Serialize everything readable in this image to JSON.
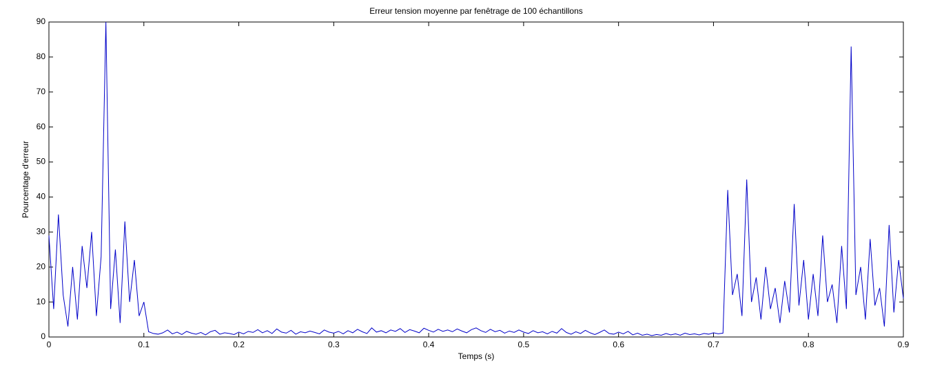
{
  "chart_data": {
    "type": "line",
    "title": "Erreur tension moyenne par fenêtrage de 100 échantillons",
    "x_label": "Temps (s)",
    "y_label": "Pourcentage d'erreur",
    "xlim": [
      0,
      0.9
    ],
    "ylim": [
      0,
      90
    ],
    "xticks": [
      0,
      0.1,
      0.2,
      0.3,
      0.4,
      0.5,
      0.6,
      0.7,
      0.8,
      0.9
    ],
    "yticks": [
      0,
      10,
      20,
      30,
      40,
      50,
      60,
      70,
      80,
      90
    ],
    "grid": false,
    "x": [
      0,
      0.005,
      0.01,
      0.015,
      0.02,
      0.025,
      0.03,
      0.035,
      0.04,
      0.045,
      0.05,
      0.055,
      0.06,
      0.065,
      0.07,
      0.075,
      0.08,
      0.085,
      0.09,
      0.095,
      0.1,
      0.105,
      0.11,
      0.115,
      0.12,
      0.125,
      0.13,
      0.135,
      0.14,
      0.145,
      0.15,
      0.155,
      0.16,
      0.165,
      0.17,
      0.175,
      0.18,
      0.185,
      0.19,
      0.195,
      0.2,
      0.205,
      0.21,
      0.215,
      0.22,
      0.225,
      0.23,
      0.235,
      0.24,
      0.245,
      0.25,
      0.255,
      0.26,
      0.265,
      0.27,
      0.275,
      0.28,
      0.285,
      0.29,
      0.295,
      0.3,
      0.305,
      0.31,
      0.315,
      0.32,
      0.325,
      0.33,
      0.335,
      0.34,
      0.345,
      0.35,
      0.355,
      0.36,
      0.365,
      0.37,
      0.375,
      0.38,
      0.385,
      0.39,
      0.395,
      0.4,
      0.405,
      0.41,
      0.415,
      0.42,
      0.425,
      0.43,
      0.435,
      0.44,
      0.445,
      0.45,
      0.455,
      0.46,
      0.465,
      0.47,
      0.475,
      0.48,
      0.485,
      0.49,
      0.495,
      0.5,
      0.505,
      0.51,
      0.515,
      0.52,
      0.525,
      0.53,
      0.535,
      0.54,
      0.545,
      0.55,
      0.555,
      0.56,
      0.565,
      0.57,
      0.575,
      0.58,
      0.585,
      0.59,
      0.595,
      0.6,
      0.605,
      0.61,
      0.615,
      0.62,
      0.625,
      0.63,
      0.635,
      0.64,
      0.645,
      0.65,
      0.655,
      0.66,
      0.665,
      0.67,
      0.675,
      0.68,
      0.685,
      0.69,
      0.695,
      0.7,
      0.705,
      0.71,
      0.715,
      0.72,
      0.725,
      0.73,
      0.735,
      0.74,
      0.745,
      0.75,
      0.755,
      0.76,
      0.765,
      0.77,
      0.775,
      0.78,
      0.785,
      0.79,
      0.795,
      0.8,
      0.805,
      0.81,
      0.815,
      0.82,
      0.825,
      0.83,
      0.835,
      0.84,
      0.845,
      0.85,
      0.855,
      0.86,
      0.865,
      0.87,
      0.875,
      0.88,
      0.885,
      0.89,
      0.895,
      0.9
    ],
    "series": [
      {
        "color": "#0000c8",
        "values": [
          29,
          8,
          35,
          12,
          3,
          20,
          5,
          26,
          14,
          30,
          6,
          23,
          90,
          8,
          25,
          4,
          33,
          10,
          22,
          6,
          10,
          1.5,
          1,
          0.8,
          1.2,
          2,
          0.9,
          1.4,
          0.7,
          1.6,
          1.1,
          0.8,
          1.3,
          0.6,
          1.5,
          1.9,
          0.8,
          1.2,
          1.0,
          0.7,
          1.4,
          0.9,
          1.6,
          1.3,
          2.1,
          1.2,
          1.8,
          1.0,
          2.3,
          1.4,
          1.1,
          1.9,
          0.8,
          1.5,
          1.2,
          1.7,
          1.3,
          0.9,
          2.0,
          1.4,
          1.1,
          1.6,
          0.9,
          1.8,
          1.2,
          2.2,
          1.5,
          1.0,
          2.6,
          1.4,
          1.8,
          1.2,
          2.0,
          1.6,
          2.4,
          1.3,
          2.1,
          1.7,
          1.2,
          2.5,
          1.9,
          1.4,
          2.2,
          1.6,
          2.0,
          1.5,
          2.3,
          1.7,
          1.2,
          2.1,
          2.6,
          1.8,
          1.3,
          2.2,
          1.5,
          1.9,
          1.1,
          1.7,
          1.3,
          2.0,
          1.4,
          1.0,
          1.8,
          1.2,
          1.5,
          0.9,
          1.6,
          1.1,
          2.4,
          1.3,
          0.8,
          1.5,
          1.0,
          1.9,
          1.2,
          0.7,
          1.3,
          2.0,
          1.0,
          0.8,
          1.4,
          0.9,
          1.6,
          0.6,
          1.1,
          0.5,
          0.8,
          0.4,
          0.7,
          0.5,
          1.0,
          0.6,
          0.9,
          0.5,
          1.1,
          0.7,
          0.9,
          0.6,
          1.0,
          0.8,
          1.2,
          0.9,
          1.1,
          42,
          12,
          18,
          6,
          45,
          10,
          17,
          5,
          20,
          8,
          14,
          4,
          16,
          7,
          38,
          9,
          22,
          5,
          18,
          6,
          29,
          10,
          15,
          4,
          26,
          8,
          83,
          12,
          20,
          5,
          28,
          9,
          14,
          3,
          32,
          7,
          22,
          11
        ]
      }
    ]
  }
}
